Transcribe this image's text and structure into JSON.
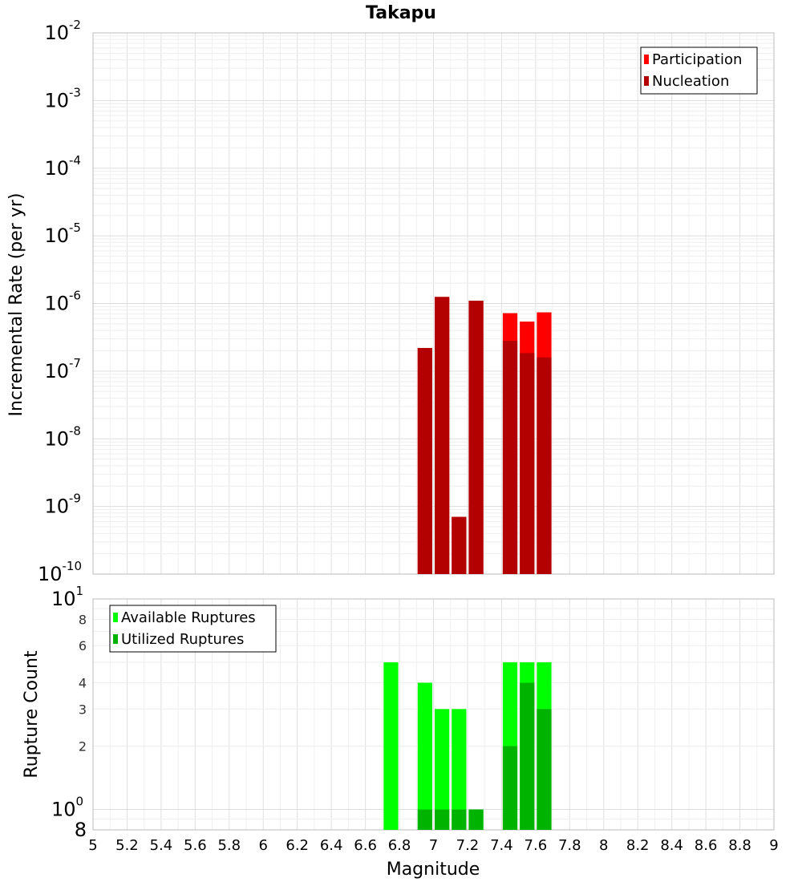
{
  "chart_data": [
    {
      "type": "bar",
      "title": "Takapu",
      "xlabel": "",
      "ylabel": "Incremental Rate (per yr)",
      "yscale": "log",
      "xlim": [
        5,
        9
      ],
      "ylim": [
        1e-10,
        0.01
      ],
      "grid": true,
      "legend_position": "top-right",
      "bar_width": 0.1,
      "y_ticks": [
        {
          "base": "10",
          "exp": "-10",
          "value": 1e-10
        },
        {
          "base": "10",
          "exp": "-9",
          "value": 1e-09
        },
        {
          "base": "10",
          "exp": "-8",
          "value": 1e-08
        },
        {
          "base": "10",
          "exp": "-7",
          "value": 1e-07
        },
        {
          "base": "10",
          "exp": "-6",
          "value": 1e-06
        },
        {
          "base": "10",
          "exp": "-5",
          "value": 1e-05
        },
        {
          "base": "10",
          "exp": "-4",
          "value": 0.0001
        },
        {
          "base": "10",
          "exp": "-3",
          "value": 0.001
        },
        {
          "base": "10",
          "exp": "-2",
          "value": 0.01
        }
      ],
      "series": [
        {
          "name": "Participation",
          "color": "#ff0000",
          "points": [
            [
              6.95,
              2.2e-07
            ],
            [
              7.05,
              1.25e-06
            ],
            [
              7.15,
              7e-10
            ],
            [
              7.25,
              1.1e-06
            ],
            [
              7.45,
              7.2e-07
            ],
            [
              7.55,
              5.4e-07
            ],
            [
              7.65,
              7.4e-07
            ]
          ]
        },
        {
          "name": "Nucleation",
          "color": "#b30000",
          "points": [
            [
              6.95,
              2.2e-07
            ],
            [
              7.05,
              1.25e-06
            ],
            [
              7.15,
              7e-10
            ],
            [
              7.25,
              1.1e-06
            ],
            [
              7.45,
              2.8e-07
            ],
            [
              7.55,
              1.85e-07
            ],
            [
              7.65,
              1.6e-07
            ]
          ]
        }
      ]
    },
    {
      "type": "bar",
      "title": "",
      "xlabel": "Magnitude",
      "ylabel": "Rupture Count",
      "yscale": "log",
      "xlim": [
        5,
        9
      ],
      "ylim": [
        0.8,
        10
      ],
      "grid": true,
      "legend_position": "top-left",
      "bar_width": 0.1,
      "y_ticks": [
        {
          "base": "8",
          "value": 0.8
        },
        {
          "base": "10",
          "exp": "0",
          "value": 1
        },
        {
          "base": "2",
          "value": 2
        },
        {
          "base": "3",
          "value": 3
        },
        {
          "base": "4",
          "value": 4
        },
        {
          "base": "6",
          "value": 6
        },
        {
          "base": "8",
          "value": 8
        },
        {
          "base": "10",
          "exp": "1",
          "value": 10
        }
      ],
      "x_ticks": [
        "5",
        "5.2",
        "5.4",
        "5.6",
        "5.8",
        "6",
        "6.2",
        "6.4",
        "6.6",
        "6.8",
        "7",
        "7.2",
        "7.4",
        "7.6",
        "7.8",
        "8",
        "8.2",
        "8.4",
        "8.6",
        "8.8",
        "9"
      ],
      "series": [
        {
          "name": "Available Ruptures",
          "color": "#00ff00",
          "points": [
            [
              6.75,
              5
            ],
            [
              6.95,
              4
            ],
            [
              7.05,
              3
            ],
            [
              7.15,
              3
            ],
            [
              7.25,
              1
            ],
            [
              7.45,
              5
            ],
            [
              7.55,
              5
            ],
            [
              7.65,
              5
            ]
          ]
        },
        {
          "name": "Utilized Ruptures",
          "color": "#00b300",
          "points": [
            [
              6.95,
              1
            ],
            [
              7.05,
              1
            ],
            [
              7.15,
              1
            ],
            [
              7.25,
              1
            ],
            [
              7.45,
              2
            ],
            [
              7.55,
              4
            ],
            [
              7.65,
              3
            ]
          ]
        }
      ]
    }
  ]
}
